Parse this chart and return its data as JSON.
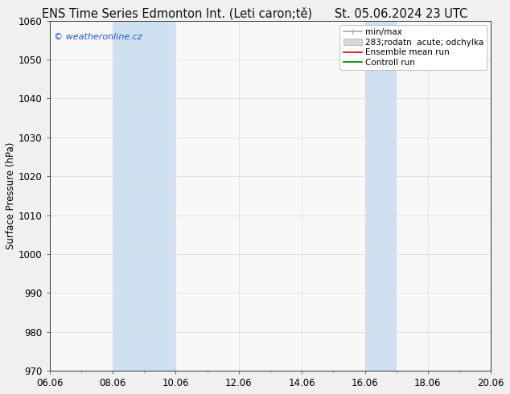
{
  "title_full": "ENS Time Series Edmonton Int. (Leti caron;tě)      St. 05.06.2024 23 UTC",
  "ylabel": "Surface Pressure (hPa)",
  "ylim": [
    970,
    1060
  ],
  "yticks": [
    970,
    980,
    990,
    1000,
    1010,
    1020,
    1030,
    1040,
    1050,
    1060
  ],
  "xlim_start": 0,
  "xlim_end": 14,
  "xtick_labels": [
    "06.06",
    "08.06",
    "10.06",
    "12.06",
    "14.06",
    "16.06",
    "18.06",
    "20.06"
  ],
  "xtick_positions": [
    0,
    2,
    4,
    6,
    8,
    10,
    12,
    14
  ],
  "minor_xtick_positions": [
    1,
    3,
    5,
    7,
    9,
    11,
    13
  ],
  "shaded_bands": [
    {
      "xstart": 2,
      "xend": 4
    },
    {
      "xstart": 10,
      "xend": 11
    }
  ],
  "shade_color": "#cfe0f0",
  "watermark": "© weatheronline.cz",
  "watermark_color": "#2255cc",
  "legend_labels": [
    "min/max",
    "283;rodatn  acute; odchylka",
    "Ensemble mean run",
    "Controll run"
  ],
  "legend_line_colors": [
    "#aaaaaa",
    "#cccccc",
    "#cc0000",
    "#007700"
  ],
  "background_color": "#f0f0f0",
  "plot_bg_color": "#f8f8f8",
  "grid_color": "#dddddd",
  "border_color": "#333333",
  "title_fontsize": 10.5,
  "axis_label_fontsize": 8.5,
  "tick_fontsize": 8.5,
  "legend_fontsize": 7.5
}
